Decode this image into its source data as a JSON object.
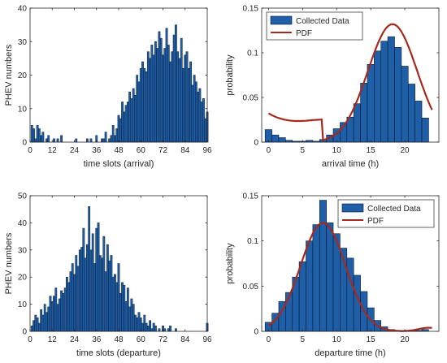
{
  "colors": {
    "bar_fill": "#1f5fa8",
    "bar_edge": "#0a1a33",
    "pdf_line": "#a52a1e",
    "axis": "#262626"
  },
  "chart_data": [
    {
      "type": "bar",
      "xlabel": "time slots (arrival)",
      "ylabel": "PHEV numbers",
      "xlim": [
        0,
        96
      ],
      "ylim": [
        0,
        40
      ],
      "xticks": [
        0,
        12,
        24,
        36,
        48,
        60,
        72,
        84,
        96
      ],
      "yticks": [
        0,
        10,
        20,
        30,
        40
      ],
      "grid": false,
      "x_start": 1,
      "values": [
        5,
        4,
        1,
        5,
        4,
        2,
        3,
        0,
        1,
        2,
        0,
        0,
        1,
        0,
        1,
        0,
        2,
        0,
        0,
        0,
        0,
        0,
        0,
        0,
        1,
        0,
        0,
        0,
        0,
        0,
        1,
        0,
        1,
        0,
        0,
        2,
        0,
        0,
        1,
        1,
        3,
        0,
        1,
        2,
        5,
        2,
        4,
        8,
        7,
        12,
        9,
        11,
        12,
        15,
        13,
        16,
        14,
        20,
        18,
        22,
        24,
        22,
        21,
        27,
        25,
        29,
        26,
        30,
        28,
        33,
        31,
        26,
        28,
        34,
        29,
        24,
        27,
        32,
        35,
        27,
        25,
        31,
        22,
        26,
        27,
        22,
        24,
        17,
        20,
        18,
        15,
        16,
        12,
        13,
        7,
        9
      ]
    },
    {
      "type": "bar",
      "xlabel": "arrival time (h)",
      "ylabel": "probability",
      "xlim": [
        -1,
        25
      ],
      "ylim": [
        0,
        0.15
      ],
      "xticks": [
        0,
        5,
        10,
        15,
        20
      ],
      "ytick_labels": [
        "0",
        "0.05",
        "0.1",
        "0.15"
      ],
      "yticks": [
        0,
        0.05,
        0.1,
        0.15
      ],
      "bin_width": 1,
      "bin_centers": [
        0,
        1,
        2,
        3,
        4,
        5,
        6,
        7,
        8,
        9,
        10,
        11,
        12,
        13,
        14,
        15,
        16,
        17,
        18,
        19,
        20,
        21,
        22,
        23
      ],
      "values": [
        0.014,
        0.008,
        0.005,
        0.002,
        0.001,
        0.001,
        0.002,
        0.001,
        0.003,
        0.008,
        0.015,
        0.022,
        0.028,
        0.043,
        0.066,
        0.087,
        0.102,
        0.113,
        0.118,
        0.106,
        0.085,
        0.065,
        0.046,
        0.027
      ],
      "pdf": {
        "mean": 18.2,
        "sd": 3.6,
        "scale": 1.1,
        "floor_center": 6.5,
        "floor_sd": 5.0,
        "floor_amp": 0.024
      },
      "legend": {
        "placement": "top-left",
        "entries": [
          "Collected Data",
          "PDF"
        ]
      },
      "grid": false
    },
    {
      "type": "bar",
      "xlabel": "time slots (departure)",
      "ylabel": "PHEV numbers",
      "xlim": [
        0,
        96
      ],
      "ylim": [
        0,
        50
      ],
      "xticks": [
        0,
        12,
        24,
        36,
        48,
        60,
        72,
        84,
        96
      ],
      "yticks": [
        0,
        10,
        20,
        30,
        40,
        50
      ],
      "grid": false,
      "x_start": 1,
      "values": [
        2,
        4,
        6,
        5,
        3,
        8,
        6,
        10,
        7,
        9,
        13,
        11,
        13,
        16,
        10,
        12,
        15,
        14,
        16,
        20,
        18,
        22,
        25,
        21,
        28,
        24,
        30,
        31,
        38,
        27,
        32,
        46,
        30,
        36,
        25,
        38,
        40,
        28,
        27,
        35,
        22,
        32,
        26,
        28,
        20,
        21,
        18,
        25,
        14,
        18,
        17,
        11,
        16,
        9,
        12,
        10,
        6,
        5,
        7,
        5,
        3,
        6,
        3,
        2,
        4,
        1,
        3,
        2,
        0,
        1,
        0,
        2,
        1,
        0,
        1,
        2,
        0,
        0,
        1,
        0,
        0,
        0,
        0,
        0,
        0,
        0,
        0,
        0,
        0,
        0,
        0,
        0,
        0,
        0,
        0,
        3
      ]
    },
    {
      "type": "bar",
      "xlabel": "departure time (h)",
      "ylabel": "probability",
      "xlim": [
        -1,
        25
      ],
      "ylim": [
        0,
        0.15
      ],
      "xticks": [
        0,
        5,
        10,
        15,
        20
      ],
      "ytick_labels": [
        "0",
        "0.05",
        "0.1",
        "0.15"
      ],
      "yticks": [
        0,
        0.05,
        0.1,
        0.15
      ],
      "bin_width": 1,
      "bin_centers": [
        0,
        1,
        2,
        3,
        4,
        5,
        6,
        7,
        8,
        9,
        10,
        11,
        12,
        13,
        14,
        15,
        16,
        17,
        18,
        19,
        20,
        21,
        22,
        23
      ],
      "values": [
        0.01,
        0.02,
        0.033,
        0.043,
        0.06,
        0.077,
        0.1,
        0.118,
        0.145,
        0.12,
        0.108,
        0.092,
        0.081,
        0.062,
        0.044,
        0.026,
        0.012,
        0.005,
        0.002,
        0.001,
        0.001,
        0.001,
        0.001,
        0.002
      ],
      "pdf": {
        "mean": 8.0,
        "sd": 3.3,
        "scale": 1.0,
        "floor_center": 0,
        "floor_sd": 1,
        "floor_amp": 0,
        "tail_center": 23.5,
        "tail_sd": 1.5,
        "tail_amp": 0.004
      },
      "legend": {
        "placement": "top-right",
        "entries": [
          "Collected Data",
          "PDF"
        ]
      },
      "grid": false
    }
  ]
}
